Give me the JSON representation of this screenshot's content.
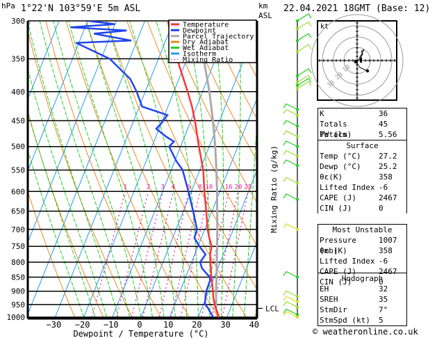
{
  "header": {
    "pressure_unit": "hPa",
    "location": "1°22'N  103°59'E  5m  ASL",
    "height_unit_line1": "km",
    "height_unit_line2": "ASL",
    "datetime": "22.04.2021  18GMT  (Base: 12)"
  },
  "legend": [
    {
      "label": "Temperature",
      "color": "#ff3333",
      "style": "solid"
    },
    {
      "label": "Dewpoint",
      "color": "#2244ee",
      "style": "solid"
    },
    {
      "label": "Parcel Trajectory",
      "color": "#aaaaaa",
      "style": "solid"
    },
    {
      "label": "Dry Adiabat",
      "color": "#ee8822",
      "style": "solid"
    },
    {
      "label": "Wet Adiabat",
      "color": "#22cc22",
      "style": "solid"
    },
    {
      "label": "Isotherm",
      "color": "#2299ee",
      "style": "solid"
    },
    {
      "label": "Mixing Ratio",
      "color": "#ee1199",
      "style": "dotted"
    }
  ],
  "chart_data": {
    "type": "line",
    "title": "Skew-T log-P diagram",
    "xlabel": "Dewpoint / Temperature (°C)",
    "ylabel": "hPa",
    "secondary_label": "Mixing Ratio (g/kg)",
    "xlim": [
      -40,
      40
    ],
    "ylim": [
      1000,
      300
    ],
    "x_ticks": [
      -30,
      -20,
      -10,
      0,
      10,
      20,
      30,
      40
    ],
    "pressure_levels": [
      300,
      350,
      400,
      450,
      500,
      550,
      600,
      650,
      700,
      750,
      800,
      850,
      900,
      950,
      1000
    ],
    "mixing_ratio_labels": [
      "1",
      "2",
      "3",
      "4",
      "6",
      "8",
      "10",
      "16",
      "20",
      "25"
    ],
    "mixing_ratio_label_level": 600,
    "lcl_label": "LCL",
    "lcl_pressure": 965,
    "series": [
      {
        "name": "Temperature",
        "color": "#ff3333",
        "points": [
          [
            1003,
            27.2
          ],
          [
            975,
            25.5
          ],
          [
            950,
            24.0
          ],
          [
            925,
            22.6
          ],
          [
            900,
            21.5
          ],
          [
            850,
            19.0
          ],
          [
            800,
            16.6
          ],
          [
            775,
            15.4
          ],
          [
            750,
            14.8
          ],
          [
            725,
            12.8
          ],
          [
            700,
            11.0
          ],
          [
            650,
            8.0
          ],
          [
            600,
            4.6
          ],
          [
            550,
            1.2
          ],
          [
            500,
            -3.6
          ],
          [
            450,
            -8.6
          ],
          [
            425,
            -11.6
          ],
          [
            400,
            -15.2
          ],
          [
            350,
            -23.5
          ],
          [
            330,
            -27.0
          ],
          [
            300,
            -32.0
          ]
        ]
      },
      {
        "name": "Dewpoint",
        "color": "#2244ee",
        "points": [
          [
            1003,
            25.2
          ],
          [
            980,
            23.5
          ],
          [
            960,
            21.8
          ],
          [
            950,
            20.6
          ],
          [
            925,
            19.8
          ],
          [
            900,
            19.2
          ],
          [
            860,
            19.0
          ],
          [
            850,
            18.4
          ],
          [
            820,
            14.5
          ],
          [
            800,
            13.0
          ],
          [
            775,
            13.8
          ],
          [
            750,
            10.5
          ],
          [
            725,
            7.6
          ],
          [
            700,
            7.3
          ],
          [
            650,
            3.4
          ],
          [
            600,
            -1.0
          ],
          [
            550,
            -6.0
          ],
          [
            530,
            -9.5
          ],
          [
            500,
            -14.0
          ],
          [
            490,
            -13.0
          ],
          [
            480,
            -16.5
          ],
          [
            465,
            -21.0
          ],
          [
            455,
            -20.0
          ],
          [
            440,
            -19.0
          ],
          [
            425,
            -29.0
          ],
          [
            400,
            -33.0
          ],
          [
            380,
            -37.0
          ],
          [
            350,
            -47.0
          ],
          [
            328,
            -61.0
          ],
          [
            325,
            -42.0
          ],
          [
            316,
            -56.0
          ],
          [
            312,
            -45.0
          ],
          [
            308,
            -65.0
          ],
          [
            304,
            -50.0
          ],
          [
            300,
            -60.0
          ]
        ]
      },
      {
        "name": "Parcel Trajectory",
        "color": "#aaaaaa",
        "points": [
          [
            1003,
            27.2
          ],
          [
            965,
            25.0
          ],
          [
            900,
            22.6
          ],
          [
            850,
            20.8
          ],
          [
            800,
            18.8
          ],
          [
            750,
            16.7
          ],
          [
            700,
            14.4
          ],
          [
            650,
            11.8
          ],
          [
            600,
            9.0
          ],
          [
            550,
            5.8
          ],
          [
            500,
            2.1
          ],
          [
            450,
            -2.3
          ],
          [
            400,
            -7.6
          ],
          [
            350,
            -14.2
          ],
          [
            300,
            -22.6
          ]
        ]
      }
    ]
  },
  "wind_barbs": {
    "colors": [
      "#22cc22",
      "#99dd33",
      "#dddd22"
    ],
    "levels": [
      300,
      310,
      325,
      340,
      375,
      385,
      390,
      395,
      430,
      440,
      460,
      480,
      500,
      520,
      540,
      580,
      620,
      700,
      850,
      920,
      940,
      960,
      990,
      1000
    ]
  },
  "hodograph": {
    "unit_label": "kt",
    "ring_labels": [
      "10",
      "20",
      "30"
    ],
    "ring_labels_visible": [
      "(10)",
      "(20)",
      "(30)"
    ]
  },
  "indices": {
    "top": [
      {
        "label": "K",
        "value": "36"
      },
      {
        "label": "Totals Totals",
        "value": "45"
      },
      {
        "label": "PW (cm)",
        "value": "5.56"
      }
    ],
    "surface": {
      "title": "Surface",
      "rows": [
        {
          "label": "Temp (°C)",
          "value": "27.2"
        },
        {
          "label": "Dewp (°C)",
          "value": "25.2"
        },
        {
          "label": "θε(K)",
          "value": "358"
        },
        {
          "label": "Lifted Index",
          "value": "-6"
        },
        {
          "label": "CAPE (J)",
          "value": "2467"
        },
        {
          "label": "CIN (J)",
          "value": "0"
        }
      ]
    },
    "most_unstable": {
      "title": "Most Unstable",
      "rows": [
        {
          "label": "Pressure (mb)",
          "value": "1007"
        },
        {
          "label": "θε (K)",
          "value": "358"
        },
        {
          "label": "Lifted Index",
          "value": "-6"
        },
        {
          "label": "CAPE (J)",
          "value": "2467"
        },
        {
          "label": "CIN (J)",
          "value": "0"
        }
      ]
    },
    "hodograph": {
      "title": "Hodograph",
      "rows": [
        {
          "label": "EH",
          "value": "32"
        },
        {
          "label": "SREH",
          "value": "35"
        },
        {
          "label": "StmDir",
          "value": "7°"
        },
        {
          "label": "StmSpd (kt)",
          "value": "5"
        }
      ]
    }
  },
  "footer": {
    "copyright": "© weatheronline.co.uk"
  }
}
